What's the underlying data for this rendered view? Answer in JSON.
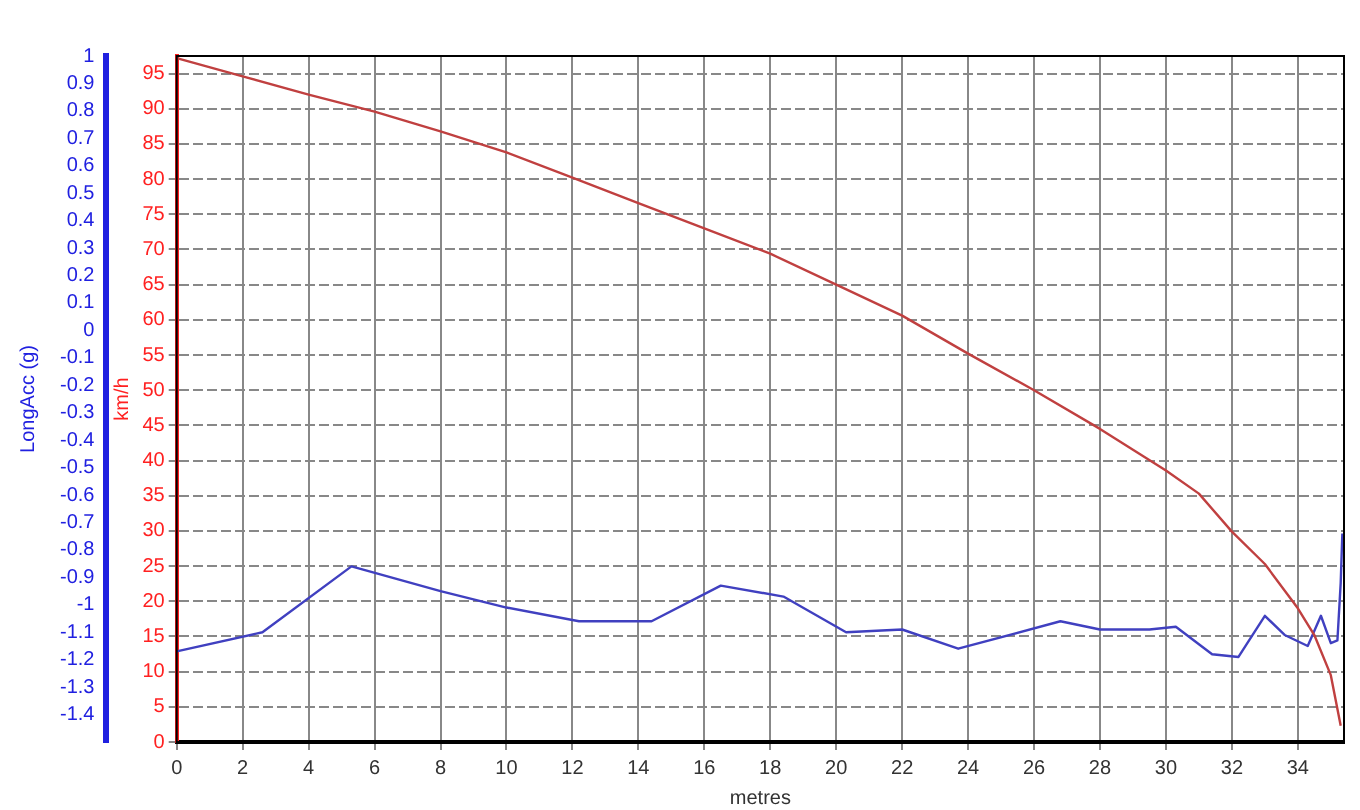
{
  "chart_data": {
    "type": "line",
    "xlabel": "metres",
    "ylabel": "km/h",
    "y2label": "LongAcc (g)",
    "xlim": [
      0,
      35.4
    ],
    "xticks": [
      0,
      2,
      4,
      6,
      8,
      10,
      12,
      14,
      16,
      18,
      20,
      22,
      24,
      26,
      28,
      30,
      32,
      34
    ],
    "ylim": [
      0,
      97.5
    ],
    "yticks": [
      0,
      5,
      10,
      15,
      20,
      25,
      30,
      35,
      40,
      45,
      50,
      55,
      60,
      65,
      70,
      75,
      80,
      85,
      90,
      95
    ],
    "y2lim": [
      -1.5,
      1
    ],
    "y2ticks": [
      -1.4,
      -1.3,
      -1.2,
      -1.1,
      -1,
      -0.9,
      -0.8,
      -0.7,
      -0.6,
      -0.5,
      -0.4,
      -0.3,
      -0.2,
      -0.1,
      0,
      0.1,
      0.2,
      0.3,
      0.4,
      0.5,
      0.6,
      0.7,
      0.8,
      0.9,
      1
    ],
    "grid": true,
    "legend": false,
    "marker": "none",
    "line_style": "solid",
    "series": [
      {
        "color": "#c04040",
        "x": [
          0,
          2,
          4,
          6,
          8,
          10,
          12,
          14,
          16,
          18,
          20,
          22,
          24,
          26,
          28,
          30,
          31,
          32,
          33,
          34,
          34.5,
          35,
          35.3
        ],
        "values": [
          97.2,
          94.6,
          92,
          89.6,
          86.8,
          83.8,
          80.2,
          76.6,
          73,
          69.4,
          65,
          60.6,
          55.2,
          50,
          44.5,
          38.6,
          35.3,
          29.9,
          25.3,
          19,
          15.2,
          9.5,
          2.3
        ]
      },
      {
        "color": "#4040c0",
        "axis": "y2",
        "x": [
          0,
          2.6,
          5.3,
          8,
          10,
          12.2,
          14.4,
          16.5,
          18.4,
          20.3,
          22,
          23.7,
          26.8,
          28,
          29.5,
          30.3,
          31.4,
          32.2,
          33,
          33.6,
          34.3,
          34.7,
          35,
          35.2,
          35.3,
          35.35
        ],
        "values": [
          -1.17,
          -1.1,
          -0.86,
          -0.95,
          -1.01,
          -1.06,
          -1.06,
          -0.93,
          -0.97,
          -1.1,
          -1.09,
          -1.16,
          -1.06,
          -1.09,
          -1.09,
          -1.08,
          -1.18,
          -1.19,
          -1.04,
          -1.11,
          -1.15,
          -1.04,
          -1.14,
          -1.13,
          -0.92,
          -0.74
        ]
      }
    ]
  }
}
